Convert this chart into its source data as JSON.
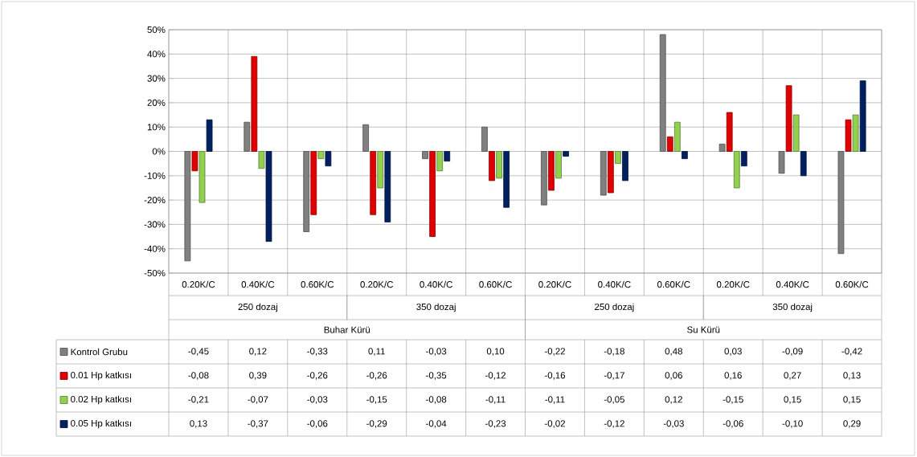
{
  "chart_data": {
    "type": "bar",
    "categories": [
      "0.20K/C",
      "0.40K/C",
      "0.60K/C",
      "0.20K/C",
      "0.40K/C",
      "0.60K/C",
      "0.20K/C",
      "0.40K/C",
      "0.60K/C",
      "0.20K/C",
      "0.40K/C",
      "0.60K/C"
    ],
    "series": [
      {
        "name": "Kontrol Grubu",
        "color": "#808080",
        "values": [
          -0.45,
          0.12,
          -0.33,
          0.11,
          -0.03,
          0.1,
          -0.22,
          -0.18,
          0.48,
          0.03,
          -0.09,
          -0.42
        ],
        "value_labels": [
          "-0,45",
          "0,12",
          "-0,33",
          "0,11",
          "-0,03",
          "0,10",
          "-0,22",
          "-0,18",
          "0,48",
          "0,03",
          "-0,09",
          "-0,42"
        ]
      },
      {
        "name": "0.01 Hp katkısı",
        "color": "#e00000",
        "values": [
          -0.08,
          0.39,
          -0.26,
          -0.26,
          -0.35,
          -0.12,
          -0.16,
          -0.17,
          0.06,
          0.16,
          0.27,
          0.13
        ],
        "value_labels": [
          "-0,08",
          "0,39",
          "-0,26",
          "-0,26",
          "-0,35",
          "-0,12",
          "-0,16",
          "-0,17",
          "0,06",
          "0,16",
          "0,27",
          "0,13"
        ]
      },
      {
        "name": "0.02 Hp katkısı",
        "color": "#92d050",
        "values": [
          -0.21,
          -0.07,
          -0.03,
          -0.15,
          -0.08,
          -0.11,
          -0.11,
          -0.05,
          0.12,
          -0.15,
          0.15,
          0.15
        ],
        "value_labels": [
          "-0,21",
          "-0,07",
          "-0,03",
          "-0,15",
          "-0,08",
          "-0,11",
          "-0,11",
          "-0,05",
          "0,12",
          "-0,15",
          "0,15",
          "0,15"
        ]
      },
      {
        "name": "0.05 Hp katkısı",
        "color": "#002060",
        "values": [
          0.13,
          -0.37,
          -0.06,
          -0.29,
          -0.04,
          -0.23,
          -0.02,
          -0.12,
          -0.03,
          -0.06,
          -0.1,
          0.29
        ],
        "value_labels": [
          "0,13",
          "-0,37",
          "-0,06",
          "-0,29",
          "-0,04",
          "-0,23",
          "-0,02",
          "-0,12",
          "-0,03",
          "-0,06",
          "-0,10",
          "0,29"
        ]
      }
    ],
    "ylim": [
      -0.5,
      0.5
    ],
    "yticks": [
      {
        "value": -0.5,
        "label": "-50%"
      },
      {
        "value": -0.4,
        "label": "-40%"
      },
      {
        "value": -0.3,
        "label": "-30%"
      },
      {
        "value": -0.2,
        "label": "-20%"
      },
      {
        "value": -0.1,
        "label": "-10%"
      },
      {
        "value": 0,
        "label": "0%"
      },
      {
        "value": 0.1,
        "label": "10%"
      },
      {
        "value": 0.2,
        "label": "20%"
      },
      {
        "value": 0.3,
        "label": "30%"
      },
      {
        "value": 0.4,
        "label": "40%"
      },
      {
        "value": 0.5,
        "label": "50%"
      }
    ],
    "annotations": [
      "250 dozaj",
      "350 dozaj",
      "250 dozaj",
      "350 dozaj",
      "Buhar Kürü",
      "Su Kürü"
    ],
    "grid": "y",
    "legend": "left"
  }
}
